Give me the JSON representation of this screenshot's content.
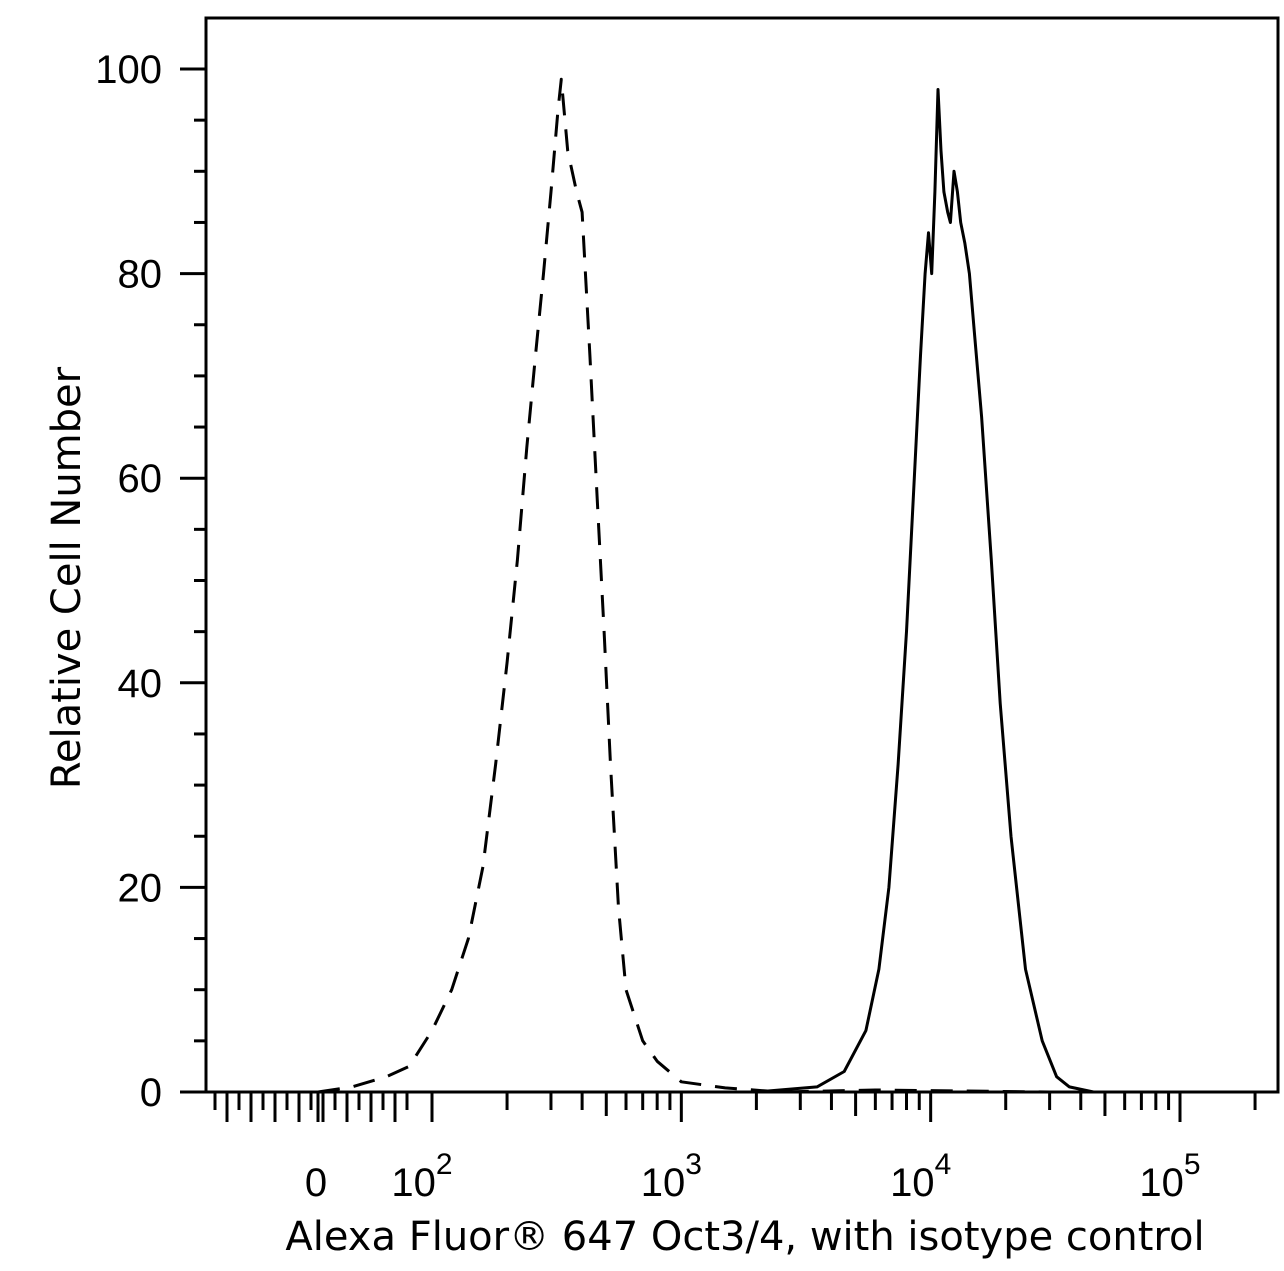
{
  "chart_data": {
    "type": "line",
    "title": "",
    "xlabel": "Alexa Fluor® 647 Oct3/4, with isotype control",
    "ylabel": "Relative Cell Number",
    "xscale": "biexponential-log",
    "ylim": [
      0,
      100
    ],
    "yticks": [
      {
        "value": 0,
        "label": "0"
      },
      {
        "value": 20,
        "label": "20"
      },
      {
        "value": 40,
        "label": "40"
      },
      {
        "value": 60,
        "label": "60"
      },
      {
        "value": 80,
        "label": "80"
      },
      {
        "value": 100,
        "label": "100"
      }
    ],
    "xticks": [
      {
        "value": 0,
        "base": "0",
        "exp": ""
      },
      {
        "value": 100,
        "base": "10",
        "exp": "2"
      },
      {
        "value": 1000,
        "base": "10",
        "exp": "3"
      },
      {
        "value": 10000,
        "base": "10",
        "exp": "4"
      },
      {
        "value": 100000,
        "base": "10",
        "exp": "5"
      }
    ],
    "grid": false,
    "legend": "none",
    "series": [
      {
        "style": "dashed",
        "color": "#000000",
        "points": [
          [
            0,
            0
          ],
          [
            30,
            0.5
          ],
          [
            60,
            1.5
          ],
          [
            80,
            2.5
          ],
          [
            100,
            6
          ],
          [
            120,
            10
          ],
          [
            140,
            15
          ],
          [
            160,
            22
          ],
          [
            180,
            32
          ],
          [
            200,
            42
          ],
          [
            220,
            52
          ],
          [
            240,
            63
          ],
          [
            260,
            72
          ],
          [
            280,
            80
          ],
          [
            300,
            88
          ],
          [
            320,
            96
          ],
          [
            330,
            99
          ],
          [
            350,
            92
          ],
          [
            380,
            88
          ],
          [
            400,
            86
          ],
          [
            430,
            72
          ],
          [
            460,
            58
          ],
          [
            490,
            45
          ],
          [
            520,
            32
          ],
          [
            560,
            18
          ],
          [
            600,
            10
          ],
          [
            700,
            5
          ],
          [
            800,
            3
          ],
          [
            1000,
            1
          ],
          [
            1500,
            0.4
          ],
          [
            2500,
            0
          ],
          [
            6000,
            0.2
          ],
          [
            30000,
            0
          ]
        ]
      },
      {
        "style": "solid",
        "color": "#000000",
        "points": [
          [
            0,
            0
          ],
          [
            2000,
            0
          ],
          [
            3500,
            0.5
          ],
          [
            4500,
            2
          ],
          [
            5500,
            6
          ],
          [
            6200,
            12
          ],
          [
            6800,
            20
          ],
          [
            7400,
            32
          ],
          [
            8000,
            45
          ],
          [
            8600,
            60
          ],
          [
            9100,
            72
          ],
          [
            9500,
            80
          ],
          [
            9800,
            84
          ],
          [
            10100,
            80
          ],
          [
            10400,
            88
          ],
          [
            10700,
            98
          ],
          [
            11000,
            92
          ],
          [
            11300,
            88
          ],
          [
            11700,
            86
          ],
          [
            12000,
            85
          ],
          [
            12400,
            90
          ],
          [
            12800,
            88
          ],
          [
            13200,
            85
          ],
          [
            13700,
            83
          ],
          [
            14300,
            80
          ],
          [
            15000,
            74
          ],
          [
            16000,
            66
          ],
          [
            17500,
            52
          ],
          [
            19000,
            38
          ],
          [
            21000,
            25
          ],
          [
            24000,
            12
          ],
          [
            28000,
            5
          ],
          [
            32000,
            1.5
          ],
          [
            36000,
            0.5
          ],
          [
            45000,
            0
          ],
          [
            200000,
            0
          ]
        ]
      }
    ]
  }
}
